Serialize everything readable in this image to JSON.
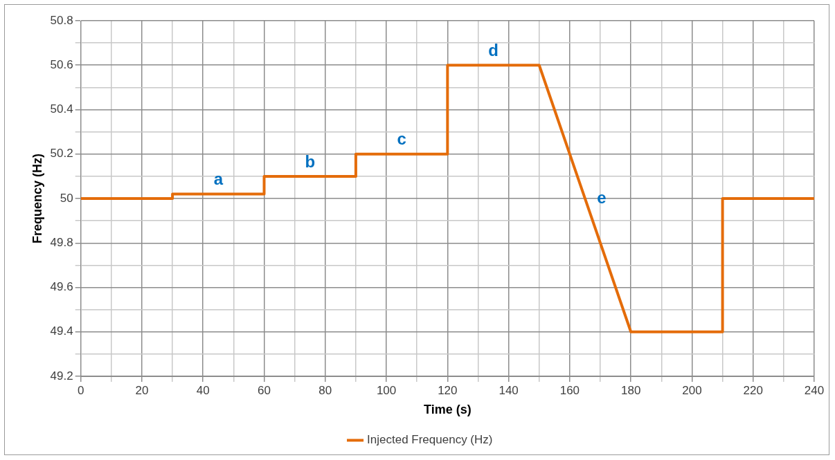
{
  "chart_data": {
    "type": "line",
    "xlabel": "Time (s)",
    "ylabel": "Frequency (Hz)",
    "x": [
      0,
      30,
      30,
      60,
      60,
      90,
      90,
      120,
      120,
      150,
      180,
      210,
      210,
      240
    ],
    "series": [
      {
        "name": "Injected Frequency (Hz)",
        "color": "#e46c0a",
        "values": [
          50,
          50,
          50.02,
          50.02,
          50.1,
          50.1,
          50.2,
          50.2,
          50.6,
          50.6,
          49.4,
          49.4,
          50,
          50
        ]
      }
    ],
    "xlim": [
      0,
      240
    ],
    "xticks": [
      0,
      {
        "value": 10,
        "label": null
      },
      20,
      {
        "value": 30,
        "label": null
      },
      40,
      {
        "value": 50,
        "label": null
      },
      60,
      {
        "value": 70,
        "label": null
      },
      80,
      {
        "value": 90,
        "label": null
      },
      100,
      {
        "value": 110,
        "label": null
      },
      120,
      {
        "value": 130,
        "label": null
      },
      140,
      {
        "value": 150,
        "label": null
      },
      160,
      {
        "value": 170,
        "label": null
      },
      180,
      {
        "value": 190,
        "label": null
      },
      200,
      {
        "value": 210,
        "label": null
      },
      220,
      {
        "value": 230,
        "label": null
      },
      240
    ],
    "ylim": [
      49.2,
      50.8
    ],
    "yticks": [
      49.2,
      {
        "value": 49.3,
        "label": null
      },
      49.4,
      {
        "value": 49.5,
        "label": null
      },
      49.6,
      {
        "value": 49.7,
        "label": null
      },
      49.8,
      {
        "value": 49.9,
        "label": null
      },
      50,
      {
        "value": 50.1,
        "label": null
      },
      50.2,
      {
        "value": 50.3,
        "label": null
      },
      50.4,
      {
        "value": 50.5,
        "label": null
      },
      50.6,
      {
        "value": 50.7,
        "label": null
      },
      50.8
    ],
    "annotations": [
      {
        "text": "a",
        "x": 45,
        "y": 50.02
      },
      {
        "text": "b",
        "x": 75,
        "y": 50.1
      },
      {
        "text": "c",
        "x": 105,
        "y": 50.2
      },
      {
        "text": "d",
        "x": 135,
        "y": 50.6
      },
      {
        "text": "e",
        "x": 165,
        "y": 50
      }
    ],
    "grid": true,
    "legend": "bottom",
    "marker": "none",
    "line_style": "solid"
  }
}
